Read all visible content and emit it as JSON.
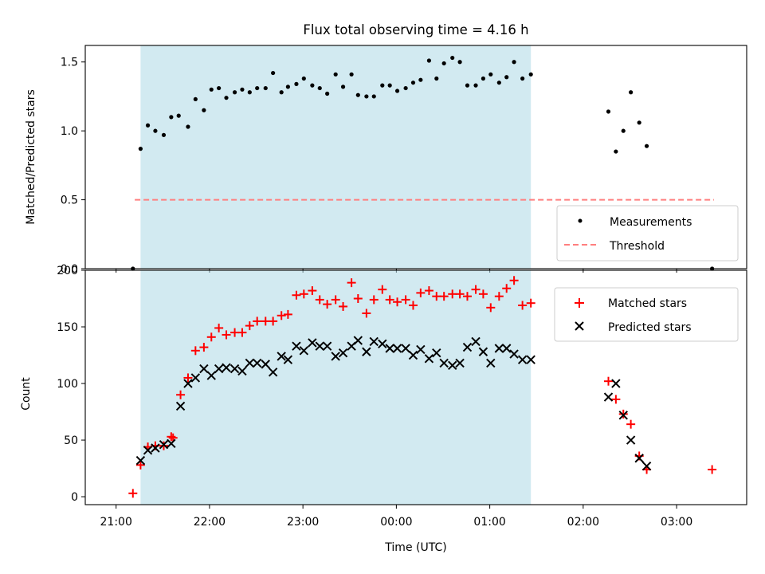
{
  "figure_title": "Flux total observing time = 4.16 h",
  "colors": {
    "band": "#add8e6",
    "measurement": "#000000",
    "threshold": "#ff7f7f",
    "matched": "#ff0000",
    "predicted": "#000000"
  },
  "chart_data": [
    {
      "type": "scatter",
      "title": "Flux total observing time = 4.16 h",
      "xlabel": "",
      "ylabel": "Matched/Predicted stars",
      "x_unit": "hours since 21:00 UTC",
      "xlim": [
        -0.33,
        6.75
      ],
      "ylim": [
        0,
        1.62
      ],
      "xticks": [
        0,
        1,
        2,
        3,
        4,
        5,
        6
      ],
      "yticks": [
        0.0,
        0.5,
        1.0,
        1.5
      ],
      "ytick_labels": [
        "0.0",
        "0.5",
        "1.0",
        "1.5"
      ],
      "grid": false,
      "legend_position": "lower right",
      "shaded_band": [
        0.262,
        4.44
      ],
      "threshold": {
        "name": "Threshold",
        "y": 0.5,
        "x_range": [
          0.2,
          6.4
        ]
      },
      "series": [
        {
          "name": "Measurements",
          "x": [
            0.18,
            0.262,
            0.34,
            0.42,
            0.51,
            0.59,
            0.67,
            0.77,
            0.85,
            0.94,
            1.02,
            1.1,
            1.18,
            1.27,
            1.35,
            1.43,
            1.51,
            1.6,
            1.68,
            1.77,
            1.84,
            1.93,
            2.01,
            2.1,
            2.18,
            2.26,
            2.35,
            2.43,
            2.52,
            2.59,
            2.68,
            2.76,
            2.85,
            2.93,
            3.01,
            3.1,
            3.18,
            3.26,
            3.35,
            3.43,
            3.51,
            3.6,
            3.68,
            3.76,
            3.85,
            3.93,
            4.01,
            4.1,
            4.18,
            4.26,
            4.35,
            4.44,
            5.27,
            5.35,
            5.43,
            5.51,
            5.6,
            5.68,
            6.38
          ],
          "y": [
            0,
            0.87,
            1.04,
            1.0,
            0.97,
            1.1,
            1.11,
            1.03,
            1.23,
            1.15,
            1.3,
            1.31,
            1.24,
            1.28,
            1.3,
            1.28,
            1.31,
            1.31,
            1.42,
            1.28,
            1.32,
            1.34,
            1.38,
            1.33,
            1.31,
            1.27,
            1.41,
            1.32,
            1.41,
            1.26,
            1.25,
            1.25,
            1.33,
            1.33,
            1.29,
            1.31,
            1.35,
            1.37,
            1.51,
            1.38,
            1.49,
            1.53,
            1.5,
            1.33,
            1.33,
            1.38,
            1.41,
            1.35,
            1.39,
            1.5,
            1.38,
            1.41,
            1.14,
            0.85,
            1.0,
            1.28,
            1.06,
            0.89,
            0
          ]
        }
      ]
    },
    {
      "type": "scatter",
      "title": "",
      "xlabel": "Time (UTC)",
      "ylabel": "Count",
      "x_unit": "hours since 21:00 UTC",
      "xlim": [
        -0.33,
        6.75
      ],
      "ylim": [
        -7,
        200
      ],
      "xticks": [
        0,
        1,
        2,
        3,
        4,
        5,
        6
      ],
      "xtick_labels": [
        "21:00",
        "22:00",
        "23:00",
        "00:00",
        "01:00",
        "02:00",
        "03:00"
      ],
      "yticks": [
        0,
        50,
        100,
        150,
        200
      ],
      "ytick_labels": [
        "0",
        "50",
        "100",
        "150",
        "200"
      ],
      "grid": false,
      "legend_position": "upper right",
      "shaded_band": [
        0.262,
        4.44
      ],
      "series": [
        {
          "name": "Matched stars",
          "marker": "plus",
          "x": [
            0.18,
            0.262,
            0.34,
            0.42,
            0.51,
            0.59,
            0.61,
            0.69,
            0.77,
            0.85,
            0.94,
            1.02,
            1.1,
            1.18,
            1.27,
            1.35,
            1.43,
            1.51,
            1.6,
            1.68,
            1.77,
            1.84,
            1.93,
            2.01,
            2.1,
            2.18,
            2.26,
            2.35,
            2.43,
            2.52,
            2.59,
            2.68,
            2.76,
            2.85,
            2.93,
            3.01,
            3.1,
            3.18,
            3.26,
            3.35,
            3.43,
            3.51,
            3.6,
            3.68,
            3.76,
            3.85,
            3.93,
            4.01,
            4.1,
            4.18,
            4.26,
            4.35,
            4.44,
            5.27,
            5.35,
            5.43,
            5.51,
            5.6,
            5.68,
            6.38
          ],
          "y": [
            3,
            28,
            44,
            45,
            45,
            53,
            52,
            90,
            105,
            129,
            132,
            141,
            149,
            143,
            145,
            145,
            151,
            155,
            155,
            155,
            160,
            161,
            178,
            179,
            182,
            174,
            170,
            174,
            168,
            189,
            175,
            162,
            174,
            183,
            174,
            172,
            174,
            169,
            180,
            182,
            177,
            177,
            179,
            179,
            177,
            183,
            179,
            167,
            177,
            184,
            191,
            169,
            171,
            102,
            86,
            73,
            64,
            36,
            24,
            24
          ]
        },
        {
          "name": "Predicted stars",
          "marker": "x",
          "x": [
            0.262,
            0.34,
            0.42,
            0.51,
            0.59,
            0.69,
            0.77,
            0.85,
            0.94,
            1.02,
            1.1,
            1.18,
            1.27,
            1.35,
            1.43,
            1.51,
            1.6,
            1.68,
            1.77,
            1.84,
            1.93,
            2.01,
            2.1,
            2.18,
            2.26,
            2.35,
            2.43,
            2.52,
            2.59,
            2.68,
            2.76,
            2.85,
            2.93,
            3.01,
            3.1,
            3.18,
            3.26,
            3.35,
            3.43,
            3.51,
            3.6,
            3.68,
            3.76,
            3.85,
            3.93,
            4.01,
            4.1,
            4.18,
            4.26,
            4.35,
            4.44,
            5.27,
            5.35,
            5.43,
            5.51,
            5.6,
            5.68
          ],
          "y": [
            32,
            41,
            43,
            46,
            47,
            80,
            100,
            105,
            113,
            107,
            113,
            114,
            113,
            111,
            118,
            118,
            117,
            110,
            124,
            121,
            133,
            129,
            136,
            133,
            133,
            124,
            127,
            133,
            138,
            128,
            137,
            135,
            131,
            131,
            131,
            125,
            130,
            122,
            127,
            118,
            116,
            118,
            132,
            137,
            128,
            118,
            131,
            131,
            126,
            121,
            121,
            88,
            100,
            72,
            50,
            34,
            27
          ]
        }
      ]
    }
  ]
}
